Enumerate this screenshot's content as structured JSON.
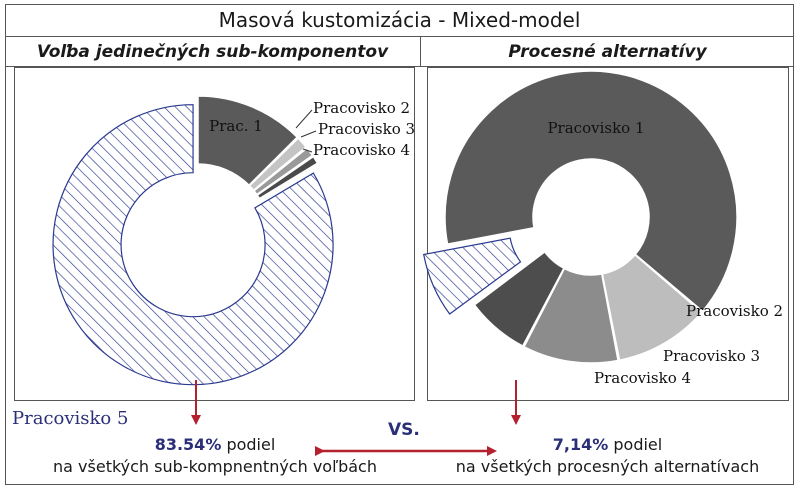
{
  "title": "Masová kustomizácia -  Mixed-model",
  "left_panel": {
    "heading": "Voľba jedinečných sub-komponentov"
  },
  "right_panel": {
    "heading": "Procesné alternatívy"
  },
  "footer": {
    "series_label": "Pracovisko 5",
    "vs": "VS.",
    "left_value": "83.54%",
    "left_word": "podiel",
    "left_caption": "na všetkých sub-kompnentných voľbách",
    "right_value": "7,14%",
    "right_word": "podiel",
    "right_caption": "na všetkých procesných alternatívach"
  },
  "colors": {
    "accent_text": "#2b2f78",
    "arrow": "#b5202e",
    "hatch": "#2b3a8f"
  },
  "chart_data": [
    {
      "type": "pie",
      "variant": "donut-exploded",
      "title": "Voľba jedinečných sub-komponentov",
      "slices": [
        {
          "label": "Prac. 1",
          "value": 12.7,
          "color": "#5a5a5a",
          "label_inside": true
        },
        {
          "label": "Pracovisko 2",
          "value": 1.5,
          "color": "#c4c4c4"
        },
        {
          "label": "Pracovisko 3",
          "value": 1.2,
          "color": "#9a9a9a"
        },
        {
          "label": "Pracovisko 4",
          "value": 1.06,
          "color": "#4a4a4a"
        },
        {
          "label": "",
          "value": 83.54,
          "color": "hatch",
          "exploded": true
        }
      ]
    },
    {
      "type": "pie",
      "variant": "donut-exploded",
      "title": "Procesné alternatívy",
      "slices": [
        {
          "label": "Pracovisko 1",
          "value": 64.29,
          "color": "#5a5a5a",
          "label_inside": true
        },
        {
          "label": "Pracovisko 2",
          "value": 10.71,
          "color": "#bdbdbd"
        },
        {
          "label": "Pracovisko 3",
          "value": 10.71,
          "color": "#8c8c8c"
        },
        {
          "label": "Pracovisko 4",
          "value": 7.14,
          "color": "#4d4d4d"
        },
        {
          "label": "",
          "value": 7.14,
          "color": "hatch",
          "exploded": true
        }
      ]
    }
  ]
}
